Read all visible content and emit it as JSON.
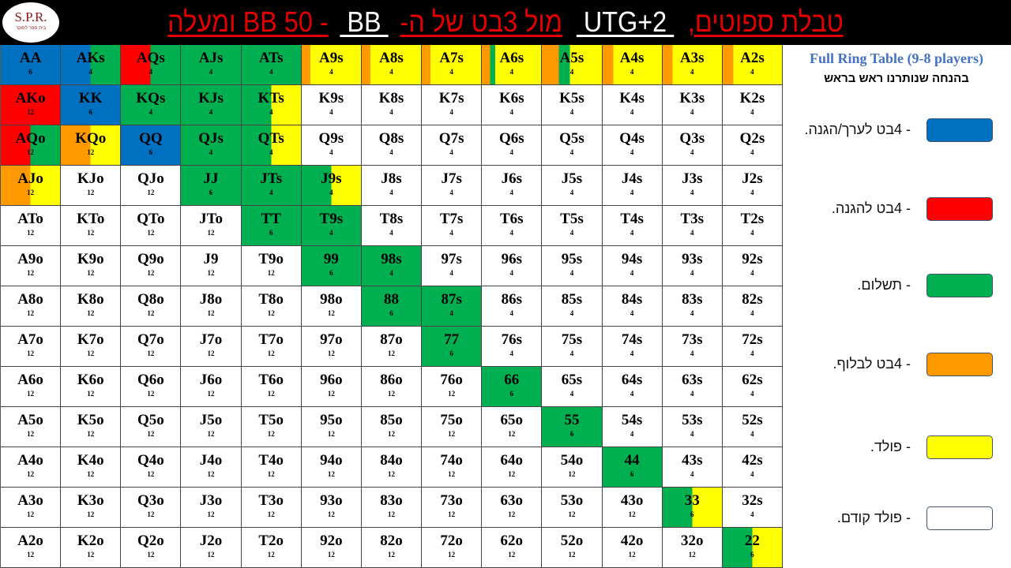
{
  "header": {
    "logo": {
      "text": "S.P.R.",
      "subtitle": "בית ספר לפוקר"
    },
    "title_segments": [
      {
        "text": "טבלת ספוטים,",
        "color": "#e50000"
      },
      {
        "text": " UTG+2 ",
        "color": "#ffffff"
      },
      {
        "text": "מול 3בט של ה-",
        "color": "#e50000"
      },
      {
        "text": " BB ",
        "color": "#ffffff"
      },
      {
        "text": "- BB 50 ומעלה",
        "color": "#e50000"
      }
    ]
  },
  "legend": {
    "title": "Full Ring Table (9-8 players)",
    "subtitle": "בהנחה שנותרנו ראש בראש",
    "items": [
      {
        "label": "- 4בט לערך/הגנה.",
        "color": "#0070c0"
      },
      {
        "label": "- 4בט להגנה.",
        "color": "#ff0000"
      },
      {
        "label": "- תשלום.",
        "color": "#00b050"
      },
      {
        "label": "- 4בט לבלוף.",
        "color": "#ff9900"
      },
      {
        "label": "- פולד.",
        "color": "#ffff00"
      },
      {
        "label": "- פולד קודם.",
        "color": "#ffffff"
      }
    ]
  },
  "colors": {
    "blue": "#0070c0",
    "red": "#ff0000",
    "green": "#00b050",
    "orange": "#ff9900",
    "yellow": "#ffff00",
    "white": "#ffffff"
  },
  "grid": {
    "hands": [
      [
        "AA",
        "AKs",
        "AQs",
        "AJs",
        "ATs",
        "A9s",
        "A8s",
        "A7s",
        "A6s",
        "A5s",
        "A4s",
        "A3s",
        "A2s"
      ],
      [
        "AKo",
        "KK",
        "KQs",
        "KJs",
        "KTs",
        "K9s",
        "K8s",
        "K7s",
        "K6s",
        "K5s",
        "K4s",
        "K3s",
        "K2s"
      ],
      [
        "AQo",
        "KQo",
        "QQ",
        "QJs",
        "QTs",
        "Q9s",
        "Q8s",
        "Q7s",
        "Q6s",
        "Q5s",
        "Q4s",
        "Q3s",
        "Q2s"
      ],
      [
        "AJo",
        "KJo",
        "QJo",
        "JJ",
        "JTs",
        "J9s",
        "J8s",
        "J7s",
        "J6s",
        "J5s",
        "J4s",
        "J3s",
        "J2s"
      ],
      [
        "ATo",
        "KTo",
        "QTo",
        "JTo",
        "TT",
        "T9s",
        "T8s",
        "T7s",
        "T6s",
        "T5s",
        "T4s",
        "T3s",
        "T2s"
      ],
      [
        "A9o",
        "K9o",
        "Q9o",
        "J9",
        "T9o",
        "99",
        "98s",
        "97s",
        "96s",
        "95s",
        "94s",
        "93s",
        "92s"
      ],
      [
        "A8o",
        "K8o",
        "Q8o",
        "J8o",
        "T8o",
        "98o",
        "88",
        "87s",
        "86s",
        "85s",
        "84s",
        "83s",
        "82s"
      ],
      [
        "A7o",
        "K7o",
        "Q7o",
        "J7o",
        "T7o",
        "97o",
        "87o",
        "77",
        "76s",
        "75s",
        "74s",
        "73s",
        "72s"
      ],
      [
        "A6o",
        "K6o",
        "Q6o",
        "J6o",
        "T6o",
        "96o",
        "86o",
        "76o",
        "66",
        "65s",
        "64s",
        "63s",
        "62s"
      ],
      [
        "A5o",
        "K5o",
        "Q5o",
        "J5o",
        "T5o",
        "95o",
        "85o",
        "75o",
        "65o",
        "55",
        "54s",
        "53s",
        "52s"
      ],
      [
        "A4o",
        "K4o",
        "Q4o",
        "J4o",
        "T4o",
        "94o",
        "84o",
        "74o",
        "64o",
        "54o",
        "44",
        "43s",
        "42s"
      ],
      [
        "A3o",
        "K3o",
        "Q3o",
        "J3o",
        "T3o",
        "93o",
        "83o",
        "73o",
        "63o",
        "53o",
        "43o",
        "33",
        "32s"
      ],
      [
        "A2o",
        "K2o",
        "Q2o",
        "J2o",
        "T2o",
        "92o",
        "82o",
        "72o",
        "62o",
        "52o",
        "42o",
        "32o",
        "22"
      ]
    ],
    "combos": [
      [
        "6",
        "4",
        "4",
        "4",
        "4",
        "4",
        "4",
        "4",
        "4",
        "4",
        "4",
        "4",
        "4"
      ],
      [
        "12",
        "6",
        "4",
        "4",
        "4",
        "4",
        "4",
        "4",
        "4",
        "4",
        "4",
        "4",
        "4"
      ],
      [
        "12",
        "12",
        "6",
        "4",
        "4",
        "4",
        "4",
        "4",
        "4",
        "4",
        "4",
        "4",
        "4"
      ],
      [
        "12",
        "12",
        "12",
        "6",
        "4",
        "4",
        "4",
        "4",
        "4",
        "4",
        "4",
        "4",
        "4"
      ],
      [
        "12",
        "12",
        "12",
        "12",
        "6",
        "4",
        "4",
        "4",
        "4",
        "4",
        "4",
        "4",
        "4"
      ],
      [
        "12",
        "12",
        "12",
        "12",
        "12",
        "6",
        "4",
        "4",
        "4",
        "4",
        "4",
        "4",
        "4"
      ],
      [
        "12",
        "12",
        "12",
        "12",
        "12",
        "12",
        "6",
        "4",
        "4",
        "4",
        "4",
        "4",
        "4"
      ],
      [
        "12",
        "12",
        "12",
        "12",
        "12",
        "12",
        "12",
        "6",
        "4",
        "4",
        "4",
        "4",
        "4"
      ],
      [
        "12",
        "12",
        "12",
        "12",
        "12",
        "12",
        "12",
        "12",
        "6",
        "4",
        "4",
        "4",
        "4"
      ],
      [
        "12",
        "12",
        "12",
        "12",
        "12",
        "12",
        "12",
        "12",
        "12",
        "6",
        "4",
        "4",
        "4"
      ],
      [
        "12",
        "12",
        "12",
        "12",
        "12",
        "12",
        "12",
        "12",
        "12",
        "12",
        "6",
        "4",
        "4"
      ],
      [
        "12",
        "12",
        "12",
        "12",
        "12",
        "12",
        "12",
        "12",
        "12",
        "12",
        "12",
        "6",
        "4"
      ],
      [
        "12",
        "12",
        "12",
        "12",
        "12",
        "12",
        "12",
        "12",
        "12",
        "12",
        "12",
        "12",
        "6"
      ]
    ],
    "action_mix_percent": {
      "AA": [
        [
          "blue",
          100
        ]
      ],
      "AKs": [
        [
          "blue",
          50
        ],
        [
          "green",
          50
        ]
      ],
      "AQs": [
        [
          "red",
          50
        ],
        [
          "green",
          50
        ]
      ],
      "AJs": [
        [
          "green",
          100
        ]
      ],
      "ATs": [
        [
          "green",
          100
        ]
      ],
      "A9s": [
        [
          "orange",
          15
        ],
        [
          "yellow",
          85
        ]
      ],
      "A8s": [
        [
          "orange",
          15
        ],
        [
          "yellow",
          85
        ]
      ],
      "A7s": [
        [
          "orange",
          15
        ],
        [
          "yellow",
          85
        ]
      ],
      "A6s": [
        [
          "orange",
          14
        ],
        [
          "green",
          9
        ],
        [
          "yellow",
          77
        ]
      ],
      "A5s": [
        [
          "orange",
          28
        ],
        [
          "green",
          19
        ],
        [
          "yellow",
          53
        ]
      ],
      "A4s": [
        [
          "orange",
          18
        ],
        [
          "yellow",
          82
        ]
      ],
      "A3s": [
        [
          "orange",
          17
        ],
        [
          "yellow",
          83
        ]
      ],
      "A2s": [
        [
          "orange",
          18
        ],
        [
          "yellow",
          82
        ]
      ],
      "AKo": [
        [
          "red",
          100
        ]
      ],
      "KK": [
        [
          "blue",
          100
        ]
      ],
      "KQs": [
        [
          "green",
          100
        ]
      ],
      "KJs": [
        [
          "green",
          100
        ]
      ],
      "KTs": [
        [
          "green",
          50
        ],
        [
          "yellow",
          50
        ]
      ],
      "AQo": [
        [
          "red",
          50
        ],
        [
          "green",
          50
        ]
      ],
      "KQo": [
        [
          "orange",
          50
        ],
        [
          "yellow",
          50
        ]
      ],
      "QQ": [
        [
          "blue",
          100
        ]
      ],
      "QJs": [
        [
          "green",
          100
        ]
      ],
      "QTs": [
        [
          "green",
          50
        ],
        [
          "yellow",
          50
        ]
      ],
      "AJo": [
        [
          "orange",
          50
        ],
        [
          "yellow",
          50
        ]
      ],
      "JJ": [
        [
          "green",
          100
        ]
      ],
      "JTs": [
        [
          "green",
          100
        ]
      ],
      "J9s": [
        [
          "green",
          50
        ],
        [
          "yellow",
          50
        ]
      ],
      "TT": [
        [
          "green",
          100
        ]
      ],
      "T9s": [
        [
          "green",
          100
        ]
      ],
      "99": [
        [
          "green",
          100
        ]
      ],
      "98s": [
        [
          "green",
          100
        ]
      ],
      "88": [
        [
          "green",
          100
        ]
      ],
      "87s": [
        [
          "green",
          100
        ]
      ],
      "77": [
        [
          "green",
          100
        ]
      ],
      "66": [
        [
          "green",
          100
        ]
      ],
      "55": [
        [
          "green",
          100
        ]
      ],
      "44": [
        [
          "green",
          100
        ]
      ],
      "33": [
        [
          "green",
          50
        ],
        [
          "yellow",
          50
        ]
      ],
      "22": [
        [
          "green",
          50
        ],
        [
          "yellow",
          50
        ]
      ]
    }
  }
}
